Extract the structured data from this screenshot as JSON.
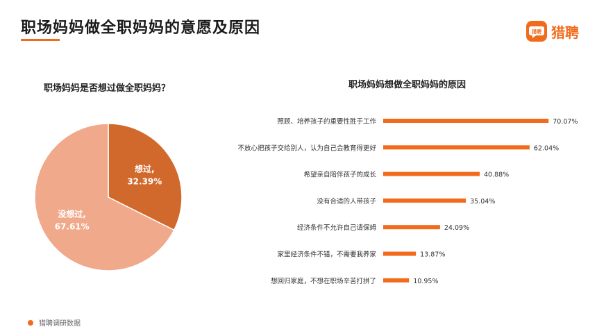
{
  "header": {
    "title": "职场妈妈做全职妈妈的意愿及原因",
    "brand": "猎聘",
    "brand_badge": "猎聘"
  },
  "colors": {
    "accent": "#f26b1d",
    "pie_yes": "#d2692c",
    "pie_no": "#f0a98a",
    "bar": "#f26b1d"
  },
  "chart_data": [
    {
      "type": "pie",
      "title": "职场妈妈是否想过做全职妈妈？",
      "slices": [
        {
          "label": "想过,",
          "value": 32.39,
          "value_label": "32.39%"
        },
        {
          "label": "没想过,",
          "value": 67.61,
          "value_label": "67.61%"
        }
      ]
    },
    {
      "type": "bar",
      "orientation": "horizontal",
      "title": "职场妈妈想做全职妈妈的原因",
      "categories": [
        "照顾、培养孩子的重要性胜于工作",
        "不放心把孩子交给别人，认为自己会教育得更好",
        "希望亲自陪伴孩子的成长",
        "没有合适的人带孩子",
        "经济条件不允许自己请保姆",
        "家里经济条件不错，不需要我养家",
        "想回归家庭，不想在职场辛苦打拼了"
      ],
      "values": [
        70.07,
        62.04,
        40.88,
        35.04,
        24.09,
        13.87,
        10.95
      ],
      "value_labels": [
        "70.07%",
        "62.04%",
        "40.88%",
        "35.04%",
        "24.09%",
        "13.87%",
        "10.95%"
      ],
      "xlim": [
        0,
        100
      ]
    }
  ],
  "footer": {
    "source": "猎聘调研数据"
  }
}
